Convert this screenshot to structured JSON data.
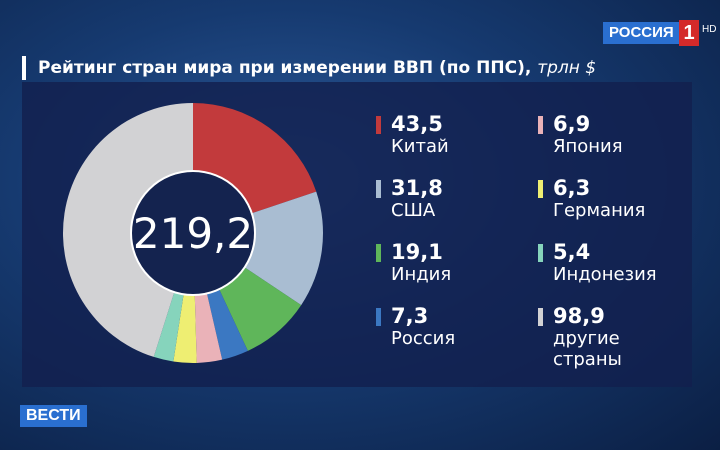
{
  "chart_data": {
    "type": "pie",
    "donut": true,
    "title": "Рейтинг стран мира при измерении ВВП (по ППС),",
    "unit": "трлн $",
    "total": 219.2,
    "total_label": "219,2",
    "categories": [
      "Китай",
      "США",
      "Индия",
      "Россия",
      "Япония",
      "Германия",
      "Индонезия",
      "другие страны"
    ],
    "values": [
      43.5,
      31.8,
      19.1,
      7.3,
      6.9,
      6.3,
      5.4,
      98.9
    ],
    "value_labels": [
      "43,5",
      "31,8",
      "19,1",
      "7,3",
      "6,9",
      "6,3",
      "5,4",
      "98,9"
    ],
    "colors": [
      "#c23a3c",
      "#a9bdd2",
      "#5fb65a",
      "#3b78c2",
      "#eab2b8",
      "#eeee72",
      "#86d4bc",
      "#d2d2d4"
    ],
    "channel": "РОССИЯ",
    "channel_number": "1",
    "quality": "HD",
    "program": "ВЕСТИ"
  }
}
